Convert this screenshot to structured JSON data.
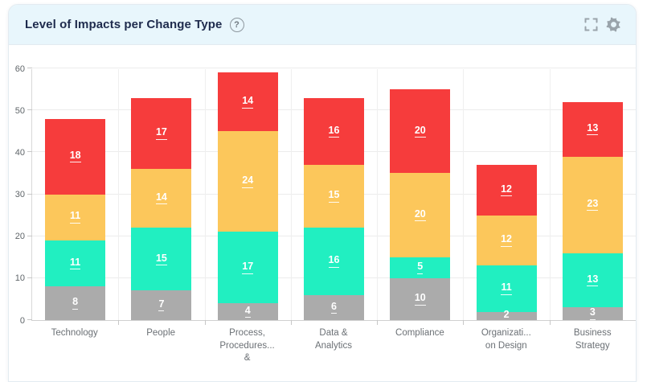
{
  "header": {
    "title": "Level of Impacts per Change Type",
    "help_label": "?"
  },
  "colors": {
    "header_bg": "#e8f6fc",
    "card_border": "#e3ebf1",
    "grid": "#ececec",
    "axis": "#d0d0d0",
    "segment_gray": "#ababab",
    "segment_teal": "#21efc1",
    "segment_yellow": "#fcc75b",
    "segment_red": "#f63c3c"
  },
  "chart_data": {
    "type": "bar",
    "stacked": true,
    "title": "Level of Impacts per Change Type",
    "xlabel": "",
    "ylabel": "",
    "ylim": [
      0,
      60
    ],
    "yticks": [
      0,
      10,
      20,
      30,
      40,
      50,
      60
    ],
    "grid": true,
    "legend": false,
    "categories": [
      "Technology",
      "People",
      "Process,\nProcedures...\n&",
      "Data &\nAnalytics",
      "Compliance",
      "Organizati...\non Design",
      "Business\nStrategy"
    ],
    "series": [
      {
        "name": "segment-gray",
        "color": "#ababab",
        "values": [
          8,
          7,
          4,
          6,
          10,
          2,
          3
        ]
      },
      {
        "name": "segment-teal",
        "color": "#21efc1",
        "values": [
          11,
          15,
          17,
          16,
          5,
          11,
          13
        ]
      },
      {
        "name": "segment-yellow",
        "color": "#fcc75b",
        "values": [
          11,
          14,
          24,
          15,
          20,
          12,
          23
        ]
      },
      {
        "name": "segment-red",
        "color": "#f63c3c",
        "values": [
          18,
          17,
          14,
          16,
          20,
          12,
          13
        ]
      }
    ],
    "totals": [
      48,
      53,
      59,
      53,
      55,
      37,
      52
    ]
  }
}
